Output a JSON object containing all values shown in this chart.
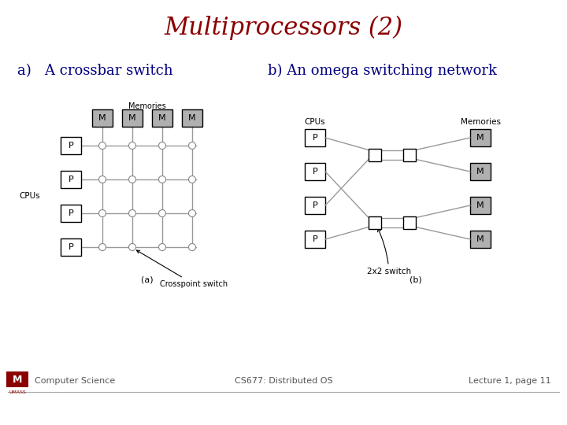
{
  "title": "Multiprocessors (2)",
  "title_color": "#8B0000",
  "title_fontsize": 22,
  "label_a": "a)   A crossbar switch",
  "label_b": "b) An omega switching network",
  "label_color": "#000080",
  "label_fontsize": 13,
  "footer_left": "Computer Science",
  "footer_center": "CS677: Distributed OS",
  "footer_right": "Lecture 1, page 11",
  "footer_color": "#555555",
  "footer_fontsize": 8,
  "bg_color": "#ffffff",
  "box_color_gray": "#b0b0b0",
  "box_color_white": "#ffffff",
  "grid_color": "#888888",
  "circle_color": "#888888",
  "line_color": "#999999"
}
